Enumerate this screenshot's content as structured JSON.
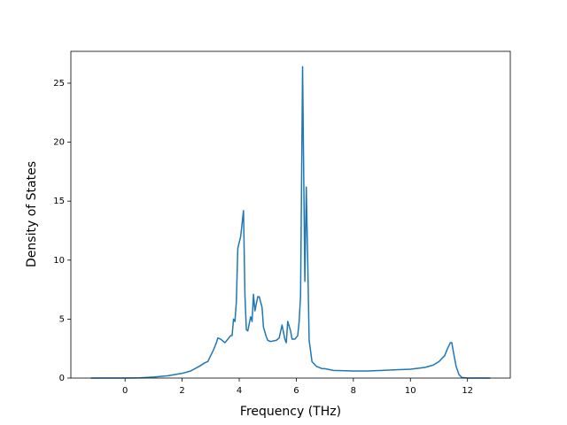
{
  "chart_data": {
    "type": "line",
    "xlabel": "Frequency (THz)",
    "ylabel": "Density of States",
    "xlim": [
      -1.9,
      13.5
    ],
    "ylim": [
      0,
      27.7
    ],
    "xticks": [
      0,
      2,
      4,
      6,
      8,
      10,
      12
    ],
    "yticks": [
      0,
      5,
      10,
      15,
      20,
      25
    ],
    "grid": false,
    "series": [
      {
        "color": "#1f77b4",
        "x": [
          -1.2,
          -0.5,
          0,
          0.5,
          1,
          1.5,
          2,
          2.3,
          2.6,
          2.8,
          2.9,
          3.0,
          3.1,
          3.2,
          3.25,
          3.35,
          3.5,
          3.6,
          3.7,
          3.75,
          3.8,
          3.85,
          3.9,
          3.95,
          4.05,
          4.15,
          4.2,
          4.25,
          4.3,
          4.4,
          4.45,
          4.5,
          4.55,
          4.65,
          4.7,
          4.8,
          4.85,
          4.95,
          5.0,
          5.1,
          5.3,
          5.4,
          5.5,
          5.6,
          5.65,
          5.7,
          5.8,
          5.85,
          5.95,
          6.05,
          6.1,
          6.15,
          6.22,
          6.3,
          6.35,
          6.4,
          6.45,
          6.55,
          6.7,
          6.9,
          7.0,
          7.3,
          8,
          8.5,
          9,
          9.5,
          10,
          10.5,
          10.8,
          11.0,
          11.2,
          11.3,
          11.4,
          11.45,
          11.5,
          11.6,
          11.7,
          11.8,
          12,
          12.8
        ],
        "values": [
          0,
          0,
          0,
          0.02,
          0.08,
          0.2,
          0.4,
          0.6,
          1.0,
          1.3,
          1.4,
          1.9,
          2.4,
          3.0,
          3.4,
          3.3,
          3.0,
          3.3,
          3.6,
          3.6,
          5.0,
          4.8,
          6.5,
          11.0,
          12.0,
          14.2,
          7.0,
          4.1,
          4.0,
          5.2,
          4.8,
          7.1,
          5.7,
          6.9,
          6.9,
          6.0,
          4.3,
          3.5,
          3.2,
          3.1,
          3.2,
          3.4,
          4.5,
          3.3,
          3.0,
          4.8,
          4.0,
          3.3,
          3.3,
          3.6,
          4.8,
          7.0,
          26.4,
          8.2,
          16.2,
          10,
          3.2,
          1.4,
          1.0,
          0.8,
          0.8,
          0.65,
          0.6,
          0.6,
          0.65,
          0.7,
          0.75,
          0.9,
          1.1,
          1.4,
          1.9,
          2.5,
          3.0,
          3.0,
          2.3,
          1.0,
          0.3,
          0.05,
          0,
          0
        ]
      }
    ]
  }
}
